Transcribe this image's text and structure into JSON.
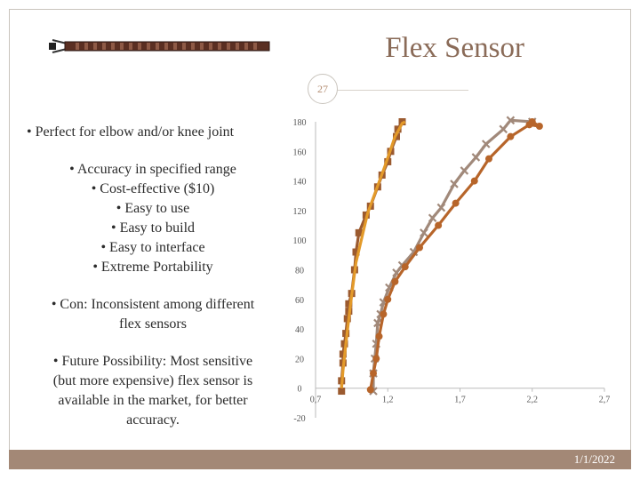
{
  "slide": {
    "title": "Flex Sensor",
    "number": "27",
    "date": "1/1/2022"
  },
  "bullets": {
    "b1": "• Perfect for elbow and/or knee joint",
    "b2_lines": [
      "• Accuracy in specified range",
      "• Cost-effective ($10)",
      "• Easy to use",
      "• Easy to build",
      "• Easy to interface",
      "• Extreme Portability"
    ],
    "b3_lines": [
      "• Con: Inconsistent among different",
      "flex sensors"
    ],
    "b4_lines": [
      "• Future Possibility: Most sensitive",
      "(but more expensive) flex sensor is",
      "available in the market, for better",
      "accuracy."
    ]
  },
  "colors": {
    "accent": "#a38876",
    "series_brown": "#9b5a2f",
    "series_orange": "#e39a2a",
    "series_gray": "#a1897a",
    "series_rust": "#b7652a"
  },
  "chart_data": {
    "type": "line",
    "xlim": [
      0.7,
      2.7
    ],
    "ylim": [
      -20,
      180
    ],
    "x_ticks": [
      "0,7",
      "1,2",
      "1,7",
      "2,2",
      "2,7"
    ],
    "y_ticks": [
      "-20",
      "0",
      "20",
      "40",
      "60",
      "80",
      "100",
      "120",
      "140",
      "160",
      "180"
    ],
    "series": [
      {
        "color": "#9b5a2f",
        "marker": "square",
        "points": [
          [
            0.88,
            -2
          ],
          [
            0.88,
            5
          ],
          [
            0.89,
            17
          ],
          [
            0.89,
            23
          ],
          [
            0.9,
            30
          ],
          [
            0.91,
            37
          ],
          [
            0.92,
            47
          ],
          [
            0.93,
            52
          ],
          [
            0.93,
            57
          ],
          [
            0.95,
            64
          ],
          [
            0.97,
            80
          ],
          [
            0.98,
            92
          ],
          [
            1.0,
            105
          ],
          [
            1.05,
            117
          ],
          [
            1.08,
            123
          ],
          [
            1.13,
            136
          ],
          [
            1.16,
            144
          ],
          [
            1.2,
            153
          ],
          [
            1.22,
            160
          ],
          [
            1.26,
            170
          ],
          [
            1.27,
            175
          ],
          [
            1.3,
            180
          ]
        ]
      },
      {
        "color": "#e39a2a",
        "marker": "none",
        "points": [
          [
            0.88,
            0
          ],
          [
            0.89,
            12
          ],
          [
            0.91,
            30
          ],
          [
            0.94,
            55
          ],
          [
            0.98,
            85
          ],
          [
            1.06,
            118
          ],
          [
            1.18,
            150
          ],
          [
            1.25,
            170
          ],
          [
            1.3,
            179
          ],
          [
            1.32,
            180
          ]
        ]
      },
      {
        "color": "#a1897a",
        "marker": "x",
        "points": [
          [
            1.1,
            -2
          ],
          [
            1.1,
            10
          ],
          [
            1.11,
            20
          ],
          [
            1.12,
            30
          ],
          [
            1.13,
            44
          ],
          [
            1.15,
            50
          ],
          [
            1.17,
            58
          ],
          [
            1.21,
            68
          ],
          [
            1.26,
            78
          ],
          [
            1.3,
            83
          ],
          [
            1.38,
            92
          ],
          [
            1.45,
            105
          ],
          [
            1.51,
            115
          ],
          [
            1.57,
            122
          ],
          [
            1.66,
            138
          ],
          [
            1.73,
            147
          ],
          [
            1.81,
            156
          ],
          [
            1.88,
            165
          ],
          [
            2.0,
            175
          ],
          [
            2.05,
            181
          ],
          [
            2.2,
            180
          ]
        ]
      },
      {
        "color": "#b7652a",
        "marker": "circle",
        "points": [
          [
            1.08,
            -1
          ],
          [
            1.1,
            10
          ],
          [
            1.12,
            20
          ],
          [
            1.14,
            35
          ],
          [
            1.17,
            50
          ],
          [
            1.2,
            60
          ],
          [
            1.25,
            72
          ],
          [
            1.32,
            82
          ],
          [
            1.42,
            95
          ],
          [
            1.55,
            110
          ],
          [
            1.67,
            125
          ],
          [
            1.8,
            140
          ],
          [
            1.9,
            155
          ],
          [
            2.05,
            170
          ],
          [
            2.18,
            178
          ],
          [
            2.25,
            177
          ],
          [
            2.2,
            180
          ]
        ]
      }
    ]
  }
}
